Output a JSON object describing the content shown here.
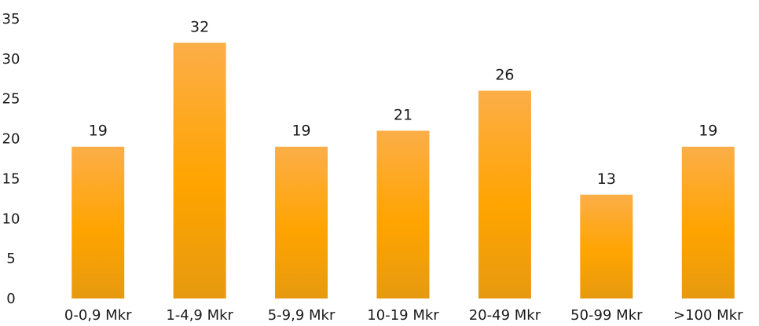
{
  "chart_data": {
    "type": "bar",
    "categories": [
      "0-0,9 Mkr",
      "1-4,9 Mkr",
      "5-9,9 Mkr",
      "10-19 Mkr",
      "20-49 Mkr",
      "50-99 Mkr",
      ">100 Mkr"
    ],
    "values": [
      19,
      32,
      19,
      21,
      26,
      13,
      19
    ],
    "title": "",
    "xlabel": "",
    "ylabel": "",
    "ylim": [
      0,
      35
    ],
    "yticks": [
      "0",
      "5",
      "10",
      "15",
      "20",
      "25",
      "30",
      "35"
    ],
    "grid": false,
    "legend": "none",
    "data_labels": true
  },
  "colors": {
    "bar_top": "#FCAE48",
    "bar_mid": "#FFA400",
    "bar_bottom": "#E69A10",
    "text": "#1a1a1a"
  }
}
